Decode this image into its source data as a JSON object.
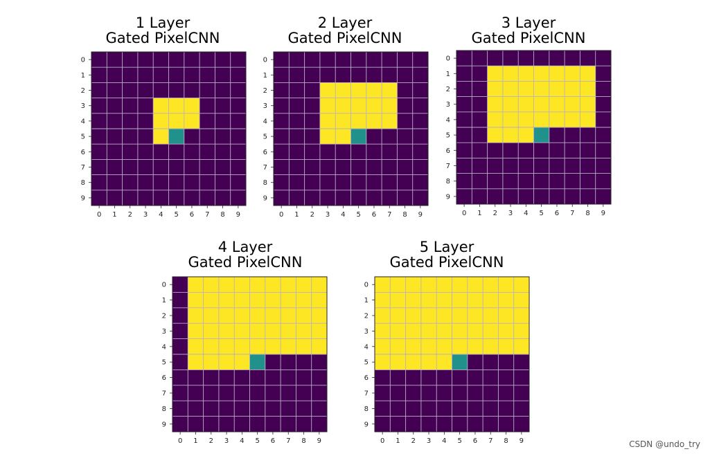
{
  "chart_data": [
    {
      "type": "heatmap",
      "title": [
        "1 Layer",
        "Gated PixelCNN"
      ],
      "x_ticks": [
        "0",
        "1",
        "2",
        "3",
        "4",
        "5",
        "6",
        "7",
        "8",
        "9"
      ],
      "y_ticks": [
        "0",
        "1",
        "2",
        "3",
        "4",
        "5",
        "6",
        "7",
        "8",
        "9"
      ],
      "grid": true,
      "legend": null,
      "colors": {
        "0": "#440154",
        "1": "#fde725",
        "2": "#21918c"
      },
      "values": [
        [
          0,
          0,
          0,
          0,
          0,
          0,
          0,
          0,
          0,
          0
        ],
        [
          0,
          0,
          0,
          0,
          0,
          0,
          0,
          0,
          0,
          0
        ],
        [
          0,
          0,
          0,
          0,
          0,
          0,
          0,
          0,
          0,
          0
        ],
        [
          0,
          0,
          0,
          0,
          1,
          1,
          1,
          0,
          0,
          0
        ],
        [
          0,
          0,
          0,
          0,
          1,
          1,
          1,
          0,
          0,
          0
        ],
        [
          0,
          0,
          0,
          0,
          1,
          2,
          0,
          0,
          0,
          0
        ],
        [
          0,
          0,
          0,
          0,
          0,
          0,
          0,
          0,
          0,
          0
        ],
        [
          0,
          0,
          0,
          0,
          0,
          0,
          0,
          0,
          0,
          0
        ],
        [
          0,
          0,
          0,
          0,
          0,
          0,
          0,
          0,
          0,
          0
        ],
        [
          0,
          0,
          0,
          0,
          0,
          0,
          0,
          0,
          0,
          0
        ]
      ]
    },
    {
      "type": "heatmap",
      "title": [
        "2 Layer",
        "Gated PixelCNN"
      ],
      "x_ticks": [
        "0",
        "1",
        "2",
        "3",
        "4",
        "5",
        "6",
        "7",
        "8",
        "9"
      ],
      "y_ticks": [
        "0",
        "1",
        "2",
        "3",
        "4",
        "5",
        "6",
        "7",
        "8",
        "9"
      ],
      "grid": true,
      "legend": null,
      "colors": {
        "0": "#440154",
        "1": "#fde725",
        "2": "#21918c"
      },
      "values": [
        [
          0,
          0,
          0,
          0,
          0,
          0,
          0,
          0,
          0,
          0
        ],
        [
          0,
          0,
          0,
          0,
          0,
          0,
          0,
          0,
          0,
          0
        ],
        [
          0,
          0,
          0,
          1,
          1,
          1,
          1,
          1,
          0,
          0
        ],
        [
          0,
          0,
          0,
          1,
          1,
          1,
          1,
          1,
          0,
          0
        ],
        [
          0,
          0,
          0,
          1,
          1,
          1,
          1,
          1,
          0,
          0
        ],
        [
          0,
          0,
          0,
          1,
          1,
          2,
          0,
          0,
          0,
          0
        ],
        [
          0,
          0,
          0,
          0,
          0,
          0,
          0,
          0,
          0,
          0
        ],
        [
          0,
          0,
          0,
          0,
          0,
          0,
          0,
          0,
          0,
          0
        ],
        [
          0,
          0,
          0,
          0,
          0,
          0,
          0,
          0,
          0,
          0
        ],
        [
          0,
          0,
          0,
          0,
          0,
          0,
          0,
          0,
          0,
          0
        ]
      ]
    },
    {
      "type": "heatmap",
      "title": [
        "3 Layer",
        "Gated PixelCNN"
      ],
      "x_ticks": [
        "0",
        "1",
        "2",
        "3",
        "4",
        "5",
        "6",
        "7",
        "8",
        "9"
      ],
      "y_ticks": [
        "0",
        "1",
        "2",
        "3",
        "4",
        "5",
        "6",
        "7",
        "8",
        "9"
      ],
      "grid": true,
      "legend": null,
      "colors": {
        "0": "#440154",
        "1": "#fde725",
        "2": "#21918c"
      },
      "values": [
        [
          0,
          0,
          0,
          0,
          0,
          0,
          0,
          0,
          0,
          0
        ],
        [
          0,
          0,
          1,
          1,
          1,
          1,
          1,
          1,
          1,
          0
        ],
        [
          0,
          0,
          1,
          1,
          1,
          1,
          1,
          1,
          1,
          0
        ],
        [
          0,
          0,
          1,
          1,
          1,
          1,
          1,
          1,
          1,
          0
        ],
        [
          0,
          0,
          1,
          1,
          1,
          1,
          1,
          1,
          1,
          0
        ],
        [
          0,
          0,
          1,
          1,
          1,
          2,
          0,
          0,
          0,
          0
        ],
        [
          0,
          0,
          0,
          0,
          0,
          0,
          0,
          0,
          0,
          0
        ],
        [
          0,
          0,
          0,
          0,
          0,
          0,
          0,
          0,
          0,
          0
        ],
        [
          0,
          0,
          0,
          0,
          0,
          0,
          0,
          0,
          0,
          0
        ],
        [
          0,
          0,
          0,
          0,
          0,
          0,
          0,
          0,
          0,
          0
        ]
      ]
    },
    {
      "type": "heatmap",
      "title": [
        "4 Layer",
        "Gated PixelCNN"
      ],
      "x_ticks": [
        "0",
        "1",
        "2",
        "3",
        "4",
        "5",
        "6",
        "7",
        "8",
        "9"
      ],
      "y_ticks": [
        "0",
        "1",
        "2",
        "3",
        "4",
        "5",
        "6",
        "7",
        "8",
        "9"
      ],
      "grid": true,
      "legend": null,
      "colors": {
        "0": "#440154",
        "1": "#fde725",
        "2": "#21918c"
      },
      "values": [
        [
          0,
          1,
          1,
          1,
          1,
          1,
          1,
          1,
          1,
          1
        ],
        [
          0,
          1,
          1,
          1,
          1,
          1,
          1,
          1,
          1,
          1
        ],
        [
          0,
          1,
          1,
          1,
          1,
          1,
          1,
          1,
          1,
          1
        ],
        [
          0,
          1,
          1,
          1,
          1,
          1,
          1,
          1,
          1,
          1
        ],
        [
          0,
          1,
          1,
          1,
          1,
          1,
          1,
          1,
          1,
          1
        ],
        [
          0,
          1,
          1,
          1,
          1,
          2,
          0,
          0,
          0,
          0
        ],
        [
          0,
          0,
          0,
          0,
          0,
          0,
          0,
          0,
          0,
          0
        ],
        [
          0,
          0,
          0,
          0,
          0,
          0,
          0,
          0,
          0,
          0
        ],
        [
          0,
          0,
          0,
          0,
          0,
          0,
          0,
          0,
          0,
          0
        ],
        [
          0,
          0,
          0,
          0,
          0,
          0,
          0,
          0,
          0,
          0
        ]
      ]
    },
    {
      "type": "heatmap",
      "title": [
        "5 Layer",
        "Gated PixelCNN"
      ],
      "x_ticks": [
        "0",
        "1",
        "2",
        "3",
        "4",
        "5",
        "6",
        "7",
        "8",
        "9"
      ],
      "y_ticks": [
        "0",
        "1",
        "2",
        "3",
        "4",
        "5",
        "6",
        "7",
        "8",
        "9"
      ],
      "grid": true,
      "legend": null,
      "colors": {
        "0": "#440154",
        "1": "#fde725",
        "2": "#21918c"
      },
      "values": [
        [
          1,
          1,
          1,
          1,
          1,
          1,
          1,
          1,
          1,
          1
        ],
        [
          1,
          1,
          1,
          1,
          1,
          1,
          1,
          1,
          1,
          1
        ],
        [
          1,
          1,
          1,
          1,
          1,
          1,
          1,
          1,
          1,
          1
        ],
        [
          1,
          1,
          1,
          1,
          1,
          1,
          1,
          1,
          1,
          1
        ],
        [
          1,
          1,
          1,
          1,
          1,
          1,
          1,
          1,
          1,
          1
        ],
        [
          1,
          1,
          1,
          1,
          1,
          2,
          0,
          0,
          0,
          0
        ],
        [
          0,
          0,
          0,
          0,
          0,
          0,
          0,
          0,
          0,
          0
        ],
        [
          0,
          0,
          0,
          0,
          0,
          0,
          0,
          0,
          0,
          0
        ],
        [
          0,
          0,
          0,
          0,
          0,
          0,
          0,
          0,
          0,
          0
        ],
        [
          0,
          0,
          0,
          0,
          0,
          0,
          0,
          0,
          0,
          0
        ]
      ]
    }
  ],
  "watermark": "CSDN @undo_try"
}
